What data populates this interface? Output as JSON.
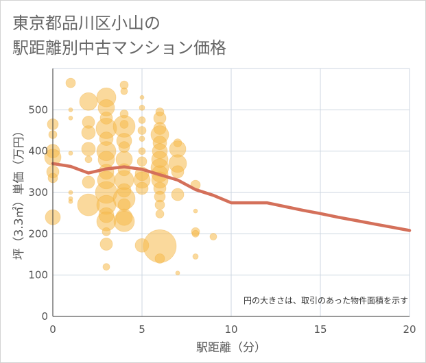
{
  "chart_data": {
    "type": "scatter",
    "title_lines": [
      "東京都品川区小山の",
      "駅距離別中古マンション価格"
    ],
    "xlabel": "駅距離（分）",
    "ylabel": "坪（3.3㎡）単価（万円）",
    "note": "円の大きさは、取引のあった物件面積を示す",
    "xlim": [
      0,
      20
    ],
    "ylim": [
      0,
      600
    ],
    "xticks": [
      "0",
      "5",
      "10",
      "15",
      "20"
    ],
    "yticks": [
      "0",
      "100",
      "200",
      "300",
      "400",
      "500"
    ],
    "grid": true,
    "bubble_color": "#f5b94a",
    "line_color": "#d4705a",
    "bubbles": [
      {
        "x": 0,
        "y": 465,
        "s": 8
      },
      {
        "x": 0,
        "y": 440,
        "s": 6
      },
      {
        "x": 0,
        "y": 400,
        "s": 10
      },
      {
        "x": 0,
        "y": 385,
        "s": 12
      },
      {
        "x": 0,
        "y": 350,
        "s": 9
      },
      {
        "x": 0,
        "y": 335,
        "s": 7
      },
      {
        "x": 0,
        "y": 240,
        "s": 11
      },
      {
        "x": 1,
        "y": 565,
        "s": 7
      },
      {
        "x": 1,
        "y": 500,
        "s": 3
      },
      {
        "x": 1,
        "y": 480,
        "s": 3
      },
      {
        "x": 1,
        "y": 395,
        "s": 3
      },
      {
        "x": 1,
        "y": 300,
        "s": 3
      },
      {
        "x": 1,
        "y": 285,
        "s": 3
      },
      {
        "x": 1,
        "y": 278,
        "s": 3
      },
      {
        "x": 2,
        "y": 520,
        "s": 13
      },
      {
        "x": 2,
        "y": 470,
        "s": 9
      },
      {
        "x": 2,
        "y": 445,
        "s": 10
      },
      {
        "x": 2,
        "y": 405,
        "s": 10
      },
      {
        "x": 2,
        "y": 380,
        "s": 5
      },
      {
        "x": 2,
        "y": 325,
        "s": 9
      },
      {
        "x": 2,
        "y": 270,
        "s": 16
      },
      {
        "x": 3,
        "y": 530,
        "s": 14
      },
      {
        "x": 3,
        "y": 505,
        "s": 12
      },
      {
        "x": 3,
        "y": 480,
        "s": 9
      },
      {
        "x": 3,
        "y": 455,
        "s": 15
      },
      {
        "x": 3,
        "y": 430,
        "s": 10
      },
      {
        "x": 3,
        "y": 400,
        "s": 14
      },
      {
        "x": 3,
        "y": 380,
        "s": 12
      },
      {
        "x": 3,
        "y": 350,
        "s": 11
      },
      {
        "x": 3,
        "y": 330,
        "s": 13
      },
      {
        "x": 3,
        "y": 300,
        "s": 16
      },
      {
        "x": 3,
        "y": 270,
        "s": 14
      },
      {
        "x": 3,
        "y": 245,
        "s": 11
      },
      {
        "x": 3,
        "y": 230,
        "s": 14
      },
      {
        "x": 3,
        "y": 205,
        "s": 6
      },
      {
        "x": 3,
        "y": 175,
        "s": 9
      },
      {
        "x": 3,
        "y": 120,
        "s": 5
      },
      {
        "x": 4,
        "y": 560,
        "s": 6
      },
      {
        "x": 4,
        "y": 545,
        "s": 5
      },
      {
        "x": 4,
        "y": 490,
        "s": 6
      },
      {
        "x": 4,
        "y": 465,
        "s": 6
      },
      {
        "x": 4,
        "y": 460,
        "s": 16
      },
      {
        "x": 4,
        "y": 425,
        "s": 11
      },
      {
        "x": 4,
        "y": 410,
        "s": 8
      },
      {
        "x": 4,
        "y": 380,
        "s": 12
      },
      {
        "x": 4,
        "y": 355,
        "s": 9
      },
      {
        "x": 4,
        "y": 330,
        "s": 14
      },
      {
        "x": 4,
        "y": 305,
        "s": 10
      },
      {
        "x": 4,
        "y": 285,
        "s": 16
      },
      {
        "x": 4,
        "y": 270,
        "s": 9
      },
      {
        "x": 4,
        "y": 240,
        "s": 12
      },
      {
        "x": 4,
        "y": 230,
        "s": 15
      },
      {
        "x": 5,
        "y": 530,
        "s": 3
      },
      {
        "x": 5,
        "y": 505,
        "s": 4
      },
      {
        "x": 5,
        "y": 475,
        "s": 5
      },
      {
        "x": 5,
        "y": 450,
        "s": 6
      },
      {
        "x": 5,
        "y": 430,
        "s": 4
      },
      {
        "x": 5,
        "y": 400,
        "s": 5
      },
      {
        "x": 5,
        "y": 375,
        "s": 7
      },
      {
        "x": 5,
        "y": 345,
        "s": 10
      },
      {
        "x": 5,
        "y": 330,
        "s": 12
      },
      {
        "x": 5,
        "y": 310,
        "s": 9
      },
      {
        "x": 5,
        "y": 172,
        "s": 10
      },
      {
        "x": 6,
        "y": 495,
        "s": 6
      },
      {
        "x": 6,
        "y": 480,
        "s": 9
      },
      {
        "x": 6,
        "y": 455,
        "s": 9
      },
      {
        "x": 6,
        "y": 440,
        "s": 13
      },
      {
        "x": 6,
        "y": 420,
        "s": 10
      },
      {
        "x": 6,
        "y": 400,
        "s": 11
      },
      {
        "x": 6,
        "y": 380,
        "s": 12
      },
      {
        "x": 6,
        "y": 360,
        "s": 13
      },
      {
        "x": 6,
        "y": 345,
        "s": 12
      },
      {
        "x": 6,
        "y": 330,
        "s": 12
      },
      {
        "x": 6,
        "y": 310,
        "s": 9
      },
      {
        "x": 6,
        "y": 290,
        "s": 8
      },
      {
        "x": 6,
        "y": 270,
        "s": 7
      },
      {
        "x": 6,
        "y": 248,
        "s": 6
      },
      {
        "x": 6,
        "y": 170,
        "s": 24
      },
      {
        "x": 6,
        "y": 140,
        "s": 7
      },
      {
        "x": 7,
        "y": 420,
        "s": 6
      },
      {
        "x": 7,
        "y": 405,
        "s": 12
      },
      {
        "x": 7,
        "y": 370,
        "s": 13
      },
      {
        "x": 7,
        "y": 350,
        "s": 9
      },
      {
        "x": 7,
        "y": 295,
        "s": 9
      },
      {
        "x": 7,
        "y": 105,
        "s": 3
      },
      {
        "x": 8,
        "y": 318,
        "s": 7
      },
      {
        "x": 8,
        "y": 255,
        "s": 3
      },
      {
        "x": 8,
        "y": 205,
        "s": 6
      },
      {
        "x": 8,
        "y": 200,
        "s": 5
      },
      {
        "x": 8,
        "y": 145,
        "s": 4
      },
      {
        "x": 9,
        "y": 193,
        "s": 5
      }
    ],
    "series": [
      {
        "type": "line",
        "x": [
          0,
          1,
          2,
          3,
          4,
          5,
          6,
          7,
          8,
          9,
          10,
          11,
          12,
          13,
          14,
          15,
          16,
          17,
          18,
          19,
          20
        ],
        "values": [
          370,
          363,
          347,
          357,
          362,
          356,
          343,
          330,
          307,
          293,
          275,
          275,
          275,
          266,
          257,
          249,
          240,
          232,
          224,
          216,
          208
        ]
      }
    ]
  }
}
